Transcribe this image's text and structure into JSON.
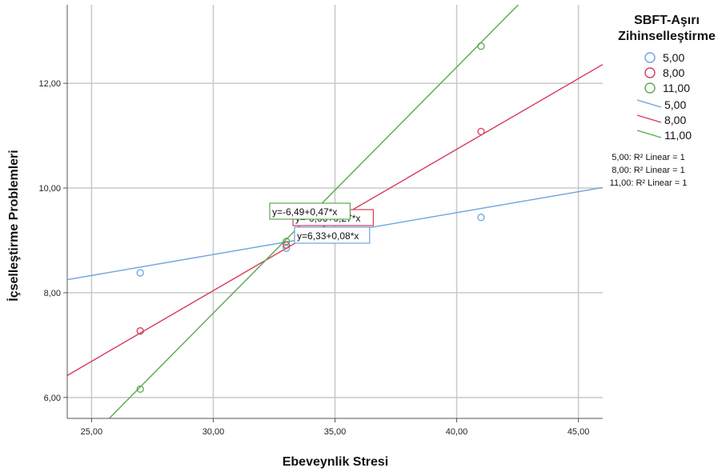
{
  "chart_data": {
    "type": "scatter",
    "xlabel": "Ebeveynlik Stresi",
    "ylabel": "İçselleştirme Problemleri",
    "xlim": [
      24.0,
      46.0
    ],
    "ylim": [
      5.6,
      13.5
    ],
    "xticks": [
      "25,00",
      "30,00",
      "35,00",
      "40,00",
      "45,00"
    ],
    "xtick_values": [
      25,
      30,
      35,
      40,
      45
    ],
    "yticks": [
      "6,00",
      "8,00",
      "10,00",
      "12,00"
    ],
    "ytick_values": [
      6,
      8,
      10,
      12
    ],
    "grid": true,
    "legend_position": "right",
    "legend_title": "SBFT-Aşırı Zihinselleştirme",
    "legend_title_lines": [
      "SBFT-Aşırı",
      "Zihinselleştirme"
    ],
    "series": [
      {
        "name": "5,00",
        "color": "#6ea4dd",
        "points": [
          [
            27,
            8.38
          ],
          [
            33,
            8.85
          ],
          [
            41,
            9.44
          ]
        ],
        "fit": {
          "intercept": 6.33,
          "slope": 0.08,
          "equation": "y=6,33+0,08*x",
          "r2_label": "5,00: R² Linear = 1"
        }
      },
      {
        "name": "8,00",
        "color": "#d93a5a",
        "points": [
          [
            27,
            7.27
          ],
          [
            33,
            8.91
          ],
          [
            41,
            11.08
          ]
        ],
        "fit": {
          "intercept": -0.06,
          "slope": 0.27,
          "equation": "y=-0,06+0,27*x",
          "r2_label": "8,00: R² Linear = 1"
        }
      },
      {
        "name": "11,00",
        "color": "#5aa84e",
        "points": [
          [
            27,
            6.16
          ],
          [
            33,
            8.98
          ],
          [
            41,
            12.71
          ]
        ],
        "fit": {
          "intercept": -6.49,
          "slope": 0.47,
          "equation": "y=-6,49+0,47*x",
          "r2_label": "11,00: R² Linear = 1"
        }
      }
    ],
    "r2_labels": [
      "5,00: R² Linear = 1",
      "8,00: R² Linear = 1",
      "11,00: R² Linear = 1"
    ]
  }
}
